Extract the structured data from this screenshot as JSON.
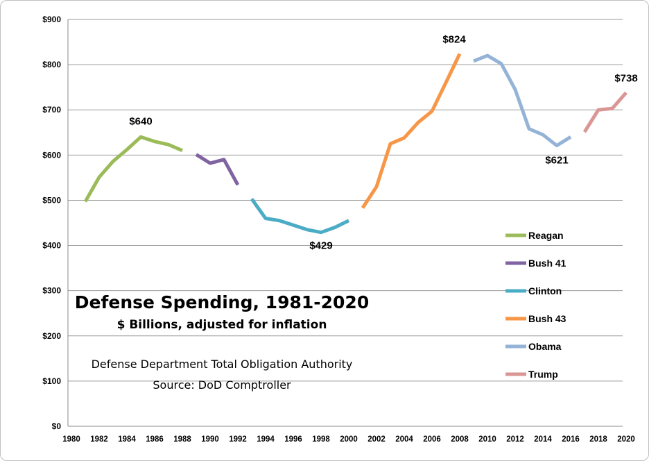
{
  "chart_data": {
    "type": "line",
    "title": "Defense Spending, 1981-2020",
    "subtitle": "$ Billions, adjusted for inflation",
    "notes": [
      "Defense Department Total Obligation Authority",
      "Source: DoD Comptroller"
    ],
    "ylim": [
      0,
      900
    ],
    "xlim": [
      1980,
      2020
    ],
    "y_ticks": [
      0,
      100,
      200,
      300,
      400,
      500,
      600,
      700,
      800,
      900
    ],
    "y_tick_labels": [
      "$0",
      "$100",
      "$200",
      "$300",
      "$400",
      "$500",
      "$600",
      "$700",
      "$800",
      "$900"
    ],
    "x_ticks": [
      1980,
      1982,
      1984,
      1986,
      1988,
      1990,
      1992,
      1994,
      1996,
      1998,
      2000,
      2002,
      2004,
      2006,
      2008,
      2010,
      2012,
      2014,
      2016,
      2018,
      2020
    ],
    "x_tick_labels": [
      "1980",
      "1982",
      "1984",
      "1986",
      "1988",
      "1990",
      "1992",
      "1994",
      "1996",
      "1998",
      "2000",
      "2002",
      "2004",
      "2006",
      "2008",
      "2010",
      "2012",
      "2014",
      "2016",
      "2018",
      "2020"
    ],
    "grid": "horizontal",
    "legend_position": "right",
    "series": [
      {
        "name": "Reagan",
        "color": "#9bbb59",
        "x": [
          1981,
          1982,
          1983,
          1984,
          1985,
          1986,
          1987,
          1988
        ],
        "values": [
          497,
          551,
          586,
          612,
          640,
          630,
          623,
          610
        ]
      },
      {
        "name": "Bush 41",
        "color": "#8064a2",
        "x": [
          1989,
          1990,
          1991,
          1992
        ],
        "values": [
          601,
          582,
          590,
          534
        ]
      },
      {
        "name": "Clinton",
        "color": "#4bacc6",
        "x": [
          1993,
          1994,
          1995,
          1996,
          1997,
          1998,
          1999,
          2000
        ],
        "values": [
          503,
          460,
          455,
          445,
          435,
          429,
          440,
          455
        ]
      },
      {
        "name": "Bush 43",
        "color": "#f79646",
        "x": [
          2001,
          2002,
          2003,
          2004,
          2005,
          2006,
          2007,
          2008
        ],
        "values": [
          483,
          530,
          625,
          638,
          672,
          697,
          760,
          824
        ]
      },
      {
        "name": "Obama",
        "color": "#95b3d7",
        "x": [
          2009,
          2010,
          2011,
          2012,
          2013,
          2014,
          2015,
          2016
        ],
        "values": [
          808,
          820,
          802,
          745,
          658,
          645,
          621,
          640
        ]
      },
      {
        "name": "Trump",
        "color": "#d99694",
        "x": [
          2017,
          2018,
          2019,
          2020
        ],
        "values": [
          651,
          700,
          703,
          738
        ]
      }
    ],
    "annotations": [
      {
        "text": "$640",
        "x": 1985,
        "y": 640
      },
      {
        "text": "$429",
        "x": 1998,
        "y": 429
      },
      {
        "text": "$824",
        "x": 2008,
        "y": 824
      },
      {
        "text": "$621",
        "x": 2015,
        "y": 621
      },
      {
        "text": "$738",
        "x": 2020,
        "y": 738
      }
    ]
  }
}
